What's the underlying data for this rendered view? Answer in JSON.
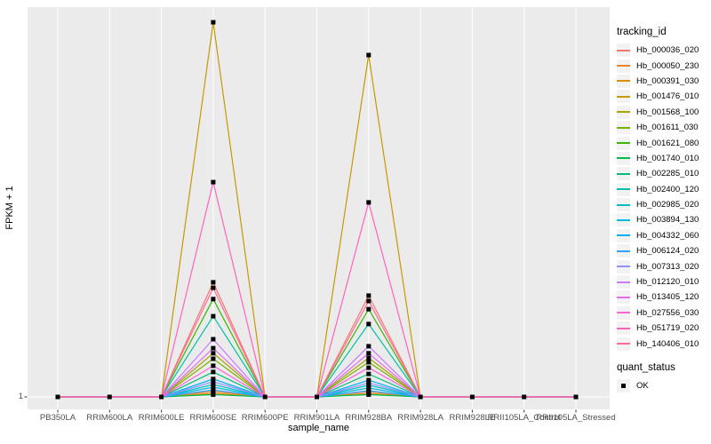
{
  "figure": {
    "background": "#FFFFFF",
    "panel_bg": "#EBEBEB",
    "grid_color": "#FFFFFF",
    "tick_color": "#333333",
    "axis_text_color": "#4D4D4D",
    "point_color": "#000000"
  },
  "y_axis": {
    "title": "FPKM + 1",
    "tick_label": "1"
  },
  "x_axis": {
    "title": "sample_name"
  },
  "legend": {
    "tracking_title": "tracking_id",
    "quant_title": "quant_status",
    "quant_items": [
      {
        "label": "OK",
        "marker": "filled-black-square"
      }
    ],
    "key_bg": "#F2F2F2"
  },
  "chart_data": {
    "type": "line",
    "title": "",
    "xlabel": "sample_name",
    "ylabel": "FPKM + 1",
    "legend_position": "right",
    "grid": true,
    "point_shape": "filled-square",
    "point_color": "#000000",
    "quant_status": "OK",
    "axis_note": "y axis shows only tick '1' at the baseline; series values below are peak heights as fraction of panel height above the '1' baseline (0 = baseline, 1 = panel top). All samples except RRIM600SE and RRIM928BA sit on the baseline.",
    "categories": [
      "PB350LA",
      "RRIM600LA",
      "RRIM600LE",
      "RRIM600SE",
      "RRIM600PE",
      "RRIM901LA",
      "RRIM928BA",
      "RRIM928LA",
      "RRIM928LE",
      "RRII105LA_Control",
      "RRII105LA_Stressed"
    ],
    "series": [
      {
        "name": "Hb_000036_020",
        "color": "#F8766D",
        "values": [
          0,
          0,
          0,
          0.294,
          0,
          0,
          0.26,
          0,
          0,
          0,
          0
        ]
      },
      {
        "name": "Hb_000050_230",
        "color": "#EA8331",
        "values": [
          0,
          0,
          0,
          0.014,
          0,
          0,
          0.014,
          0,
          0,
          0,
          0
        ]
      },
      {
        "name": "Hb_000391_030",
        "color": "#D89000",
        "values": [
          0,
          0,
          0,
          0.009,
          0,
          0,
          0.009,
          0,
          0,
          0,
          0
        ]
      },
      {
        "name": "Hb_001476_010",
        "color": "#C49A00",
        "values": [
          0,
          0,
          0,
          0.961,
          0,
          0,
          0.877,
          0,
          0,
          0,
          0
        ]
      },
      {
        "name": "Hb_001568_100",
        "color": "#A3A500",
        "values": [
          0,
          0,
          0,
          0.112,
          0,
          0,
          0.1,
          0,
          0,
          0,
          0
        ]
      },
      {
        "name": "Hb_001611_030",
        "color": "#7CAE00",
        "values": [
          0,
          0,
          0,
          0.098,
          0,
          0,
          0.089,
          0,
          0,
          0,
          0
        ]
      },
      {
        "name": "Hb_001621_080",
        "color": "#39B600",
        "values": [
          0,
          0,
          0,
          0.251,
          0,
          0,
          0.225,
          0,
          0,
          0,
          0
        ]
      },
      {
        "name": "Hb_001740_010",
        "color": "#00BB4E",
        "values": [
          0,
          0,
          0,
          0.006,
          0,
          0,
          0.006,
          0,
          0,
          0,
          0
        ]
      },
      {
        "name": "Hb_002285_010",
        "color": "#00BF7D",
        "values": [
          0,
          0,
          0,
          0.064,
          0,
          0,
          0.059,
          0,
          0,
          0,
          0
        ]
      },
      {
        "name": "Hb_002400_120",
        "color": "#00C1A3",
        "values": [
          0,
          0,
          0,
          0.207,
          0,
          0,
          0.187,
          0,
          0,
          0,
          0
        ]
      },
      {
        "name": "Hb_002985_020",
        "color": "#00BFC4",
        "values": [
          0,
          0,
          0,
          0.032,
          0,
          0,
          0.03,
          0,
          0,
          0,
          0
        ]
      },
      {
        "name": "Hb_003894_130",
        "color": "#00BAE0",
        "values": [
          0,
          0,
          0,
          0.025,
          0,
          0,
          0.023,
          0,
          0,
          0,
          0
        ]
      },
      {
        "name": "Hb_004332_060",
        "color": "#00B0F6",
        "values": [
          0,
          0,
          0,
          0.046,
          0,
          0,
          0.043,
          0,
          0,
          0,
          0
        ]
      },
      {
        "name": "Hb_006124_020",
        "color": "#35A2FF",
        "values": [
          0,
          0,
          0,
          0.018,
          0,
          0,
          0.016,
          0,
          0,
          0,
          0
        ]
      },
      {
        "name": "Hb_007313_020",
        "color": "#9590FF",
        "values": [
          0,
          0,
          0,
          0.039,
          0,
          0,
          0.036,
          0,
          0,
          0,
          0
        ]
      },
      {
        "name": "Hb_012120_010",
        "color": "#C77CFF",
        "values": [
          0,
          0,
          0,
          0.148,
          0,
          0,
          0.13,
          0,
          0,
          0,
          0
        ]
      },
      {
        "name": "Hb_013405_120",
        "color": "#E76BF3",
        "values": [
          0,
          0,
          0,
          0.125,
          0,
          0,
          0.112,
          0,
          0,
          0,
          0
        ]
      },
      {
        "name": "Hb_027556_030",
        "color": "#FA62DB",
        "values": [
          0,
          0,
          0,
          0.08,
          0,
          0,
          0.075,
          0,
          0,
          0,
          0
        ]
      },
      {
        "name": "Hb_051719_020",
        "color": "#FF62BC",
        "values": [
          0,
          0,
          0,
          0.551,
          0,
          0,
          0.499,
          0,
          0,
          0,
          0
        ]
      },
      {
        "name": "Hb_140406_010",
        "color": "#FF6A98",
        "values": [
          0,
          0,
          0,
          0.28,
          0,
          0,
          0.246,
          0,
          0,
          0,
          0
        ]
      }
    ]
  }
}
